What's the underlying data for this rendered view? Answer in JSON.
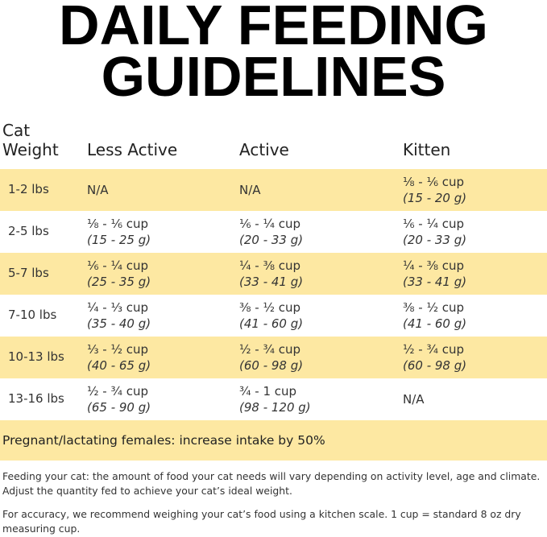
{
  "title": {
    "line1": "DAILY FEEDING",
    "line2": "GUIDELINES"
  },
  "table": {
    "headers": [
      "Cat\nWeight",
      "Less Active",
      "Active",
      "Kitten"
    ],
    "header_weight_line1": "Cat",
    "header_weight_line2": "Weight",
    "rows": [
      {
        "weight": "1-2 lbs",
        "less_active": {
          "cup": "N/A",
          "grams": ""
        },
        "active": {
          "cup": "N/A",
          "grams": ""
        },
        "kitten": {
          "cup": "⅛ - ⅙ cup",
          "grams": "(15 - 20 g)"
        }
      },
      {
        "weight": "2-5 lbs",
        "less_active": {
          "cup": "⅛ - ⅙ cup",
          "grams": "(15 - 25 g)"
        },
        "active": {
          "cup": "⅙ - ¼ cup",
          "grams": "(20 - 33 g)"
        },
        "kitten": {
          "cup": "⅙ - ¼ cup",
          "grams": "(20 - 33 g)"
        }
      },
      {
        "weight": "5-7 lbs",
        "less_active": {
          "cup": "⅙ - ¼ cup",
          "grams": "(25 - 35 g)"
        },
        "active": {
          "cup": "¼ - ⅜ cup",
          "grams": "(33 - 41 g)"
        },
        "kitten": {
          "cup": "¼ - ⅜ cup",
          "grams": "(33 - 41 g)"
        }
      },
      {
        "weight": "7-10 lbs",
        "less_active": {
          "cup": "¼ - ⅓ cup",
          "grams": "(35 - 40 g)"
        },
        "active": {
          "cup": "⅜ - ½ cup",
          "grams": "(41 - 60 g)"
        },
        "kitten": {
          "cup": "⅜ - ½ cup",
          "grams": "(41 - 60 g)"
        }
      },
      {
        "weight": "10-13 lbs",
        "less_active": {
          "cup": "⅓ - ½ cup",
          "grams": "(40 - 65 g)"
        },
        "active": {
          "cup": "½ - ¾ cup",
          "grams": "(60 - 98 g)"
        },
        "kitten": {
          "cup": "½ - ¾ cup",
          "grams": "(60 - 98 g)"
        }
      },
      {
        "weight": "13-16 lbs",
        "less_active": {
          "cup": "½ - ¾ cup",
          "grams": "(65 - 90 g)"
        },
        "active": {
          "cup": "¾ - 1 cup",
          "grams": "(98 - 120 g)"
        },
        "kitten": {
          "cup": "N/A",
          "grams": ""
        }
      }
    ]
  },
  "pregnant_note": "Pregnant/lactating females: increase intake by 50%",
  "notes": [
    "Feeding your cat: the amount of food your cat needs will vary depending on activity level, age and climate. Adjust the quantity fed to achieve your cat’s ideal weight.",
    "For accuracy, we recommend weighing your cat’s food using a kitchen scale. 1 cup = standard 8 oz dry measuring cup."
  ],
  "colors": {
    "highlight": "#fde8a2",
    "text": "#222222",
    "title": "#000000"
  }
}
